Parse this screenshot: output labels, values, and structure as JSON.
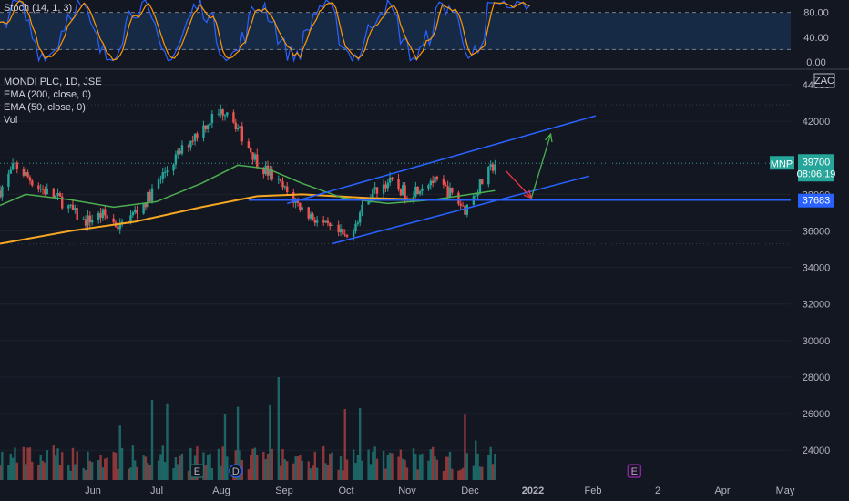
{
  "colors": {
    "background": "#131722",
    "up": "#26a69a",
    "down": "#ef5350",
    "ema200": "#f5a623",
    "ema50": "#4caf50",
    "stoch_k": "#2962ff",
    "stoch_d": "#ff9800",
    "channel": "#2962ff",
    "support": "#2962ff",
    "arrow_down": "#f23645",
    "arrow_up": "#4caf50"
  },
  "stoch": {
    "label": "Stoch (14, 1, 3)",
    "ticks": [
      "80.00",
      "40.00",
      "0.00"
    ],
    "tick_values": [
      80,
      40,
      0
    ],
    "upper": 80,
    "lower": 20
  },
  "legend": {
    "symbol": "MONDI PLC, 1D, JSE",
    "ema200": "EMA (200, close, 0)",
    "ema50": "EMA (50, close, 0)",
    "vol": "Vol"
  },
  "currency": "ZAC",
  "price_tag": {
    "ticker": "MNP",
    "price": "39700",
    "countdown": "08:06:19"
  },
  "support_tag": "37683",
  "event_markers": [
    "E",
    "D",
    "E"
  ],
  "chart_data": {
    "type": "candlestick",
    "y_ticks": [
      44000,
      42000,
      40000,
      38000,
      36000,
      34000,
      32000,
      30000,
      28000,
      26000,
      24000
    ],
    "y_range": [
      22700,
      45400
    ],
    "x_ticks": [
      "Jun",
      "Jul",
      "Aug",
      "Sep",
      "Oct",
      "Nov",
      "Dec",
      "2022",
      "Feb",
      "2",
      "Apr",
      "May"
    ],
    "x_range": [
      "2021-05-13",
      "2022-05-17"
    ],
    "price_path": [
      {
        "date": "2021-05-13",
        "close": 38200
      },
      {
        "date": "2021-05-20",
        "close": 39600
      },
      {
        "date": "2021-05-31",
        "close": 38400
      },
      {
        "date": "2021-06-10",
        "close": 37700
      },
      {
        "date": "2021-06-21",
        "close": 36500
      },
      {
        "date": "2021-06-30",
        "close": 36900
      },
      {
        "date": "2021-07-08",
        "close": 36200
      },
      {
        "date": "2021-07-20",
        "close": 37600
      },
      {
        "date": "2021-07-30",
        "close": 39400
      },
      {
        "date": "2021-08-10",
        "close": 41000
      },
      {
        "date": "2021-08-20",
        "close": 42200
      },
      {
        "date": "2021-08-27",
        "close": 42700
      },
      {
        "date": "2021-09-03",
        "close": 41200
      },
      {
        "date": "2021-09-10",
        "close": 39800
      },
      {
        "date": "2021-09-20",
        "close": 38600
      },
      {
        "date": "2021-10-01",
        "close": 37200
      },
      {
        "date": "2021-10-12",
        "close": 36200
      },
      {
        "date": "2021-10-22",
        "close": 35600
      },
      {
        "date": "2021-11-01",
        "close": 37900
      },
      {
        "date": "2021-11-10",
        "close": 38700
      },
      {
        "date": "2021-11-19",
        "close": 38000
      },
      {
        "date": "2021-11-30",
        "close": 38800
      },
      {
        "date": "2021-12-08",
        "close": 38200
      },
      {
        "date": "2021-12-16",
        "close": 37200
      },
      {
        "date": "2021-12-23",
        "close": 38500
      },
      {
        "date": "2021-12-30",
        "close": 39700
      }
    ],
    "ema200": [
      {
        "date": "2021-05-13",
        "value": 35300
      },
      {
        "date": "2021-06-15",
        "value": 36000
      },
      {
        "date": "2021-07-15",
        "value": 36500
      },
      {
        "date": "2021-08-15",
        "value": 37300
      },
      {
        "date": "2021-09-10",
        "value": 37900
      },
      {
        "date": "2021-10-01",
        "value": 38000
      },
      {
        "date": "2021-11-01",
        "value": 37800
      },
      {
        "date": "2021-12-01",
        "value": 37700
      },
      {
        "date": "2021-12-30",
        "value": 37700
      }
    ],
    "ema50": [
      {
        "date": "2021-05-13",
        "value": 37400
      },
      {
        "date": "2021-05-25",
        "value": 38000
      },
      {
        "date": "2021-06-15",
        "value": 37700
      },
      {
        "date": "2021-07-05",
        "value": 37300
      },
      {
        "date": "2021-07-25",
        "value": 37600
      },
      {
        "date": "2021-08-15",
        "value": 38600
      },
      {
        "date": "2021-09-01",
        "value": 39600
      },
      {
        "date": "2021-09-15",
        "value": 39400
      },
      {
        "date": "2021-10-01",
        "value": 38600
      },
      {
        "date": "2021-10-20",
        "value": 37800
      },
      {
        "date": "2021-11-10",
        "value": 37500
      },
      {
        "date": "2021-12-01",
        "value": 37700
      },
      {
        "date": "2021-12-30",
        "value": 38200
      }
    ],
    "channel_upper": [
      {
        "date": "2021-09-24",
        "value": 37500
      },
      {
        "date": "2022-02-15",
        "value": 42300
      }
    ],
    "channel_lower": [
      {
        "date": "2021-10-15",
        "value": 35300
      },
      {
        "date": "2022-02-12",
        "value": 39000
      }
    ],
    "support_level": {
      "from": "2021-09-06",
      "value": 37683
    },
    "arrow_down": {
      "from": {
        "date": "2022-01-04",
        "value": 39300
      },
      "to": {
        "date": "2022-01-16",
        "value": 37800
      }
    },
    "arrow_up": {
      "from": {
        "date": "2022-01-16",
        "value": 37800
      },
      "to": {
        "date": "2022-01-25",
        "value": 41300
      }
    },
    "last_price": 39700,
    "event_dates": [
      "2021-08-13",
      "2021-08-31",
      "2022-03-05"
    ]
  }
}
